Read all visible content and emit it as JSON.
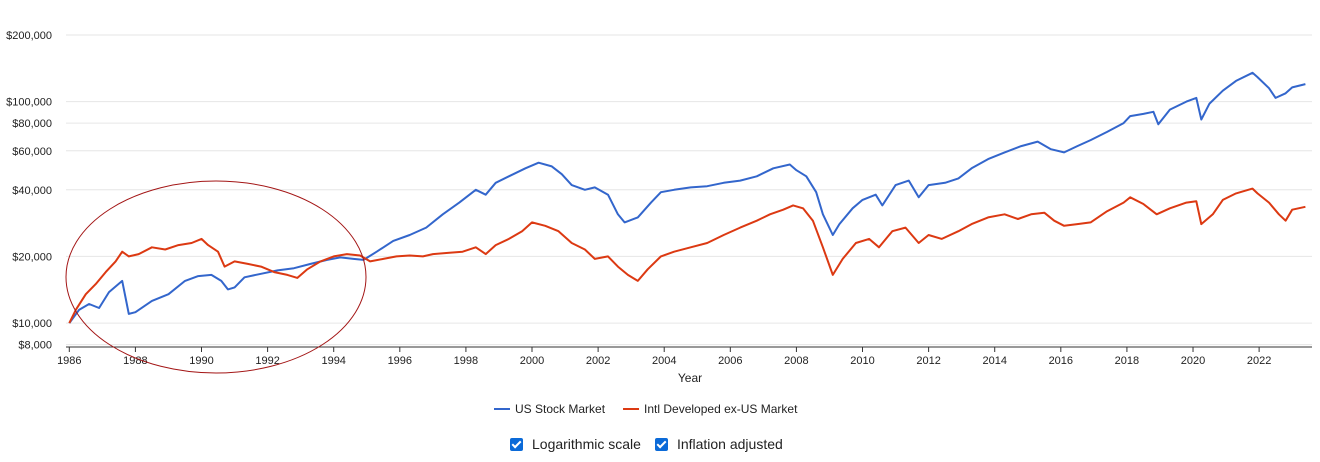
{
  "chart_data": {
    "type": "line",
    "xlabel": "Year",
    "ylabel": "",
    "yscale": "log",
    "ylim": [
      7800,
      215000
    ],
    "xlim": [
      1985.9,
      2023.6
    ],
    "y_ticks": [
      {
        "value": 8000,
        "label": "$8,000"
      },
      {
        "value": 10000,
        "label": "$10,000"
      },
      {
        "value": 20000,
        "label": "$20,000"
      },
      {
        "value": 40000,
        "label": "$40,000"
      },
      {
        "value": 60000,
        "label": "$60,000"
      },
      {
        "value": 80000,
        "label": "$80,000"
      },
      {
        "value": 100000,
        "label": "$100,000"
      },
      {
        "value": 200000,
        "label": "$200,000"
      }
    ],
    "x_ticks": [
      "1986",
      "1988",
      "1990",
      "1992",
      "1994",
      "1996",
      "1998",
      "2000",
      "2002",
      "2004",
      "2006",
      "2008",
      "2010",
      "2012",
      "2014",
      "2016",
      "2018",
      "2020",
      "2022"
    ],
    "grid": true,
    "legend_position": "bottom",
    "annotation": "ellipse highlighting 1986–1994",
    "series": [
      {
        "name": "US Stock Market",
        "color": "#3366cc",
        "points": [
          [
            1986.0,
            10000
          ],
          [
            1986.3,
            11500
          ],
          [
            1986.6,
            12200
          ],
          [
            1986.9,
            11700
          ],
          [
            1987.2,
            13800
          ],
          [
            1987.6,
            15500
          ],
          [
            1987.8,
            11000
          ],
          [
            1988.0,
            11200
          ],
          [
            1988.5,
            12600
          ],
          [
            1989.0,
            13500
          ],
          [
            1989.5,
            15500
          ],
          [
            1989.9,
            16300
          ],
          [
            1990.3,
            16500
          ],
          [
            1990.6,
            15500
          ],
          [
            1990.8,
            14200
          ],
          [
            1991.0,
            14500
          ],
          [
            1991.3,
            16100
          ],
          [
            1991.8,
            16700
          ],
          [
            1992.3,
            17300
          ],
          [
            1992.8,
            17700
          ],
          [
            1993.3,
            18500
          ],
          [
            1993.8,
            19300
          ],
          [
            1994.2,
            19800
          ],
          [
            1994.6,
            19500
          ],
          [
            1994.9,
            19300
          ],
          [
            1995.3,
            21000
          ],
          [
            1995.8,
            23500
          ],
          [
            1996.3,
            25000
          ],
          [
            1996.8,
            27000
          ],
          [
            1997.3,
            31000
          ],
          [
            1997.8,
            35000
          ],
          [
            1998.3,
            40000
          ],
          [
            1998.6,
            38000
          ],
          [
            1998.9,
            43000
          ],
          [
            1999.3,
            46000
          ],
          [
            1999.8,
            50000
          ],
          [
            2000.2,
            53000
          ],
          [
            2000.6,
            51000
          ],
          [
            2000.9,
            47000
          ],
          [
            2001.2,
            42000
          ],
          [
            2001.6,
            40000
          ],
          [
            2001.9,
            41000
          ],
          [
            2002.3,
            38000
          ],
          [
            2002.6,
            31000
          ],
          [
            2002.8,
            28500
          ],
          [
            2003.2,
            30000
          ],
          [
            2003.6,
            35000
          ],
          [
            2003.9,
            39000
          ],
          [
            2004.3,
            40000
          ],
          [
            2004.8,
            41000
          ],
          [
            2005.3,
            41500
          ],
          [
            2005.8,
            43000
          ],
          [
            2006.3,
            44000
          ],
          [
            2006.8,
            46000
          ],
          [
            2007.3,
            50000
          ],
          [
            2007.8,
            52000
          ],
          [
            2008.0,
            49000
          ],
          [
            2008.3,
            46000
          ],
          [
            2008.6,
            39000
          ],
          [
            2008.8,
            31000
          ],
          [
            2009.1,
            25000
          ],
          [
            2009.3,
            28000
          ],
          [
            2009.7,
            33000
          ],
          [
            2010.0,
            36000
          ],
          [
            2010.4,
            38000
          ],
          [
            2010.6,
            34000
          ],
          [
            2011.0,
            42000
          ],
          [
            2011.4,
            44000
          ],
          [
            2011.7,
            37000
          ],
          [
            2012.0,
            42000
          ],
          [
            2012.5,
            43000
          ],
          [
            2012.9,
            45000
          ],
          [
            2013.3,
            50000
          ],
          [
            2013.8,
            55000
          ],
          [
            2014.3,
            59000
          ],
          [
            2014.8,
            63000
          ],
          [
            2015.3,
            66000
          ],
          [
            2015.7,
            61000
          ],
          [
            2016.1,
            59000
          ],
          [
            2016.5,
            63000
          ],
          [
            2016.9,
            67000
          ],
          [
            2017.4,
            73000
          ],
          [
            2017.9,
            80000
          ],
          [
            2018.1,
            86000
          ],
          [
            2018.5,
            88000
          ],
          [
            2018.8,
            90000
          ],
          [
            2018.95,
            79000
          ],
          [
            2019.3,
            92000
          ],
          [
            2019.8,
            100000
          ],
          [
            2020.1,
            104000
          ],
          [
            2020.25,
            83000
          ],
          [
            2020.5,
            98000
          ],
          [
            2020.9,
            112000
          ],
          [
            2021.3,
            124000
          ],
          [
            2021.8,
            135000
          ],
          [
            2021.95,
            129000
          ],
          [
            2022.3,
            115000
          ],
          [
            2022.5,
            104000
          ],
          [
            2022.8,
            109000
          ],
          [
            2023.0,
            116000
          ],
          [
            2023.4,
            120000
          ]
        ]
      },
      {
        "name": "Intl Developed ex-US Market",
        "color": "#dc3912",
        "points": [
          [
            1986.0,
            10000
          ],
          [
            1986.2,
            11500
          ],
          [
            1986.5,
            13500
          ],
          [
            1986.8,
            15000
          ],
          [
            1987.1,
            17000
          ],
          [
            1987.4,
            19000
          ],
          [
            1987.6,
            21000
          ],
          [
            1987.8,
            20000
          ],
          [
            1988.1,
            20500
          ],
          [
            1988.5,
            22000
          ],
          [
            1988.9,
            21500
          ],
          [
            1989.3,
            22500
          ],
          [
            1989.7,
            23000
          ],
          [
            1990.0,
            24000
          ],
          [
            1990.2,
            22500
          ],
          [
            1990.5,
            21000
          ],
          [
            1990.7,
            18000
          ],
          [
            1991.0,
            19000
          ],
          [
            1991.4,
            18500
          ],
          [
            1991.8,
            18000
          ],
          [
            1992.2,
            17000
          ],
          [
            1992.6,
            16500
          ],
          [
            1992.9,
            16000
          ],
          [
            1993.2,
            17500
          ],
          [
            1993.6,
            19000
          ],
          [
            1994.0,
            20000
          ],
          [
            1994.4,
            20500
          ],
          [
            1994.8,
            20200
          ],
          [
            1995.1,
            19000
          ],
          [
            1995.5,
            19500
          ],
          [
            1995.9,
            20000
          ],
          [
            1996.3,
            20200
          ],
          [
            1996.7,
            20000
          ],
          [
            1997.0,
            20500
          ],
          [
            1997.5,
            20800
          ],
          [
            1997.9,
            21000
          ],
          [
            1998.3,
            22000
          ],
          [
            1998.6,
            20500
          ],
          [
            1998.9,
            22500
          ],
          [
            1999.3,
            24000
          ],
          [
            1999.7,
            26000
          ],
          [
            2000.0,
            28500
          ],
          [
            2000.4,
            27500
          ],
          [
            2000.8,
            26000
          ],
          [
            2001.2,
            23000
          ],
          [
            2001.6,
            21500
          ],
          [
            2001.9,
            19500
          ],
          [
            2002.3,
            20000
          ],
          [
            2002.6,
            18000
          ],
          [
            2002.9,
            16500
          ],
          [
            2003.2,
            15500
          ],
          [
            2003.5,
            17500
          ],
          [
            2003.9,
            20000
          ],
          [
            2004.3,
            21000
          ],
          [
            2004.8,
            22000
          ],
          [
            2005.3,
            23000
          ],
          [
            2005.8,
            25000
          ],
          [
            2006.3,
            27000
          ],
          [
            2006.8,
            29000
          ],
          [
            2007.2,
            31000
          ],
          [
            2007.6,
            32500
          ],
          [
            2007.9,
            34000
          ],
          [
            2008.2,
            33000
          ],
          [
            2008.5,
            29000
          ],
          [
            2008.8,
            22000
          ],
          [
            2009.1,
            16500
          ],
          [
            2009.4,
            19500
          ],
          [
            2009.8,
            23000
          ],
          [
            2010.2,
            24000
          ],
          [
            2010.5,
            22000
          ],
          [
            2010.9,
            26000
          ],
          [
            2011.3,
            27000
          ],
          [
            2011.7,
            23000
          ],
          [
            2012.0,
            25000
          ],
          [
            2012.4,
            24000
          ],
          [
            2012.9,
            26000
          ],
          [
            2013.3,
            28000
          ],
          [
            2013.8,
            30000
          ],
          [
            2014.3,
            31000
          ],
          [
            2014.7,
            29500
          ],
          [
            2015.1,
            31000
          ],
          [
            2015.5,
            31500
          ],
          [
            2015.8,
            29000
          ],
          [
            2016.1,
            27500
          ],
          [
            2016.5,
            28000
          ],
          [
            2016.9,
            28500
          ],
          [
            2017.4,
            32000
          ],
          [
            2017.9,
            35000
          ],
          [
            2018.1,
            37000
          ],
          [
            2018.5,
            34500
          ],
          [
            2018.9,
            31000
          ],
          [
            2019.3,
            33000
          ],
          [
            2019.8,
            35000
          ],
          [
            2020.1,
            35500
          ],
          [
            2020.25,
            28000
          ],
          [
            2020.6,
            31000
          ],
          [
            2020.9,
            36000
          ],
          [
            2021.3,
            38500
          ],
          [
            2021.8,
            40500
          ],
          [
            2021.95,
            38500
          ],
          [
            2022.3,
            35000
          ],
          [
            2022.6,
            31000
          ],
          [
            2022.8,
            29000
          ],
          [
            2023.0,
            32500
          ],
          [
            2023.4,
            33500
          ]
        ]
      }
    ]
  },
  "legend": {
    "items": [
      {
        "label": "US Stock Market",
        "color": "#3366cc"
      },
      {
        "label": "Intl Developed ex-US Market",
        "color": "#dc3912"
      }
    ]
  },
  "controls": {
    "log_label": "Logarithmic scale",
    "inflation_label": "Inflation adjusted",
    "log_checked": true,
    "inflation_checked": true
  }
}
